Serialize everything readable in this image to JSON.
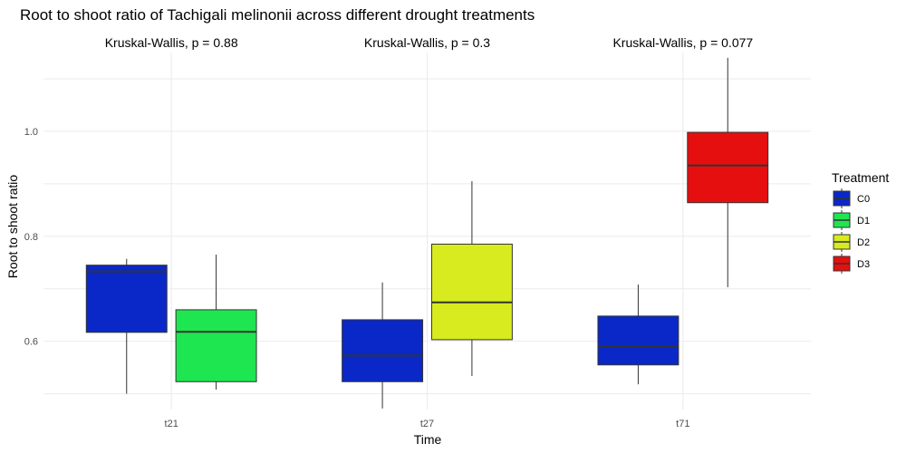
{
  "chart_data": {
    "type": "boxplot",
    "title": "Root to shoot ratio of Tachigali melinonii across different drought treatments",
    "xlabel": "Time",
    "ylabel": "Root to shoot ratio",
    "categories": [
      "t21",
      "t27",
      "t71"
    ],
    "ylim": [
      0.47,
      1.15
    ],
    "yticks": [
      0.6,
      0.8,
      1.0
    ],
    "ytick_labels": [
      "0.6",
      "0.8",
      "1.0"
    ],
    "grid": true,
    "legend": {
      "title": "Treatment",
      "position": "right",
      "entries": [
        {
          "label": "C0",
          "color": "#0a28c8"
        },
        {
          "label": "D1",
          "color": "#1ee650"
        },
        {
          "label": "D2",
          "color": "#d7eb1e"
        },
        {
          "label": "D3",
          "color": "#e60f0f"
        }
      ]
    },
    "annotations": [
      {
        "category": "t21",
        "text": "Kruskal-Wallis, p = 0.88"
      },
      {
        "category": "t27",
        "text": "Kruskal-Wallis, p = 0.3"
      },
      {
        "category": "t71",
        "text": "Kruskal-Wallis, p = 0.077"
      }
    ],
    "groups": [
      {
        "category": "t21",
        "boxes": [
          {
            "treatment": "C0",
            "min": 0.5,
            "q1": 0.617,
            "median": 0.733,
            "q3": 0.745,
            "max": 0.757
          },
          {
            "treatment": "D1",
            "min": 0.508,
            "q1": 0.523,
            "median": 0.618,
            "q3": 0.66,
            "max": 0.765
          }
        ]
      },
      {
        "category": "t27",
        "boxes": [
          {
            "treatment": "C0",
            "min": 0.472,
            "q1": 0.523,
            "median": 0.573,
            "q3": 0.641,
            "max": 0.712
          },
          {
            "treatment": "D2",
            "min": 0.534,
            "q1": 0.603,
            "median": 0.674,
            "q3": 0.785,
            "max": 0.905
          }
        ]
      },
      {
        "category": "t71",
        "boxes": [
          {
            "treatment": "C0",
            "min": 0.518,
            "q1": 0.555,
            "median": 0.59,
            "q3": 0.648,
            "max": 0.708
          },
          {
            "treatment": "D3",
            "min": 0.703,
            "q1": 0.864,
            "median": 0.935,
            "q3": 0.998,
            "max": 1.14
          }
        ]
      }
    ]
  }
}
